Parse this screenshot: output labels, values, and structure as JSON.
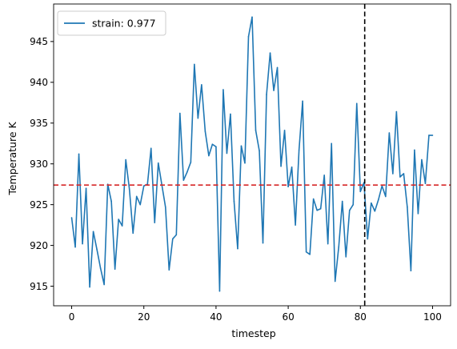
{
  "chart_data": {
    "type": "line",
    "title": "",
    "xlabel": "timestep",
    "ylabel": "Temperature K",
    "xlim": [
      -5,
      105
    ],
    "ylim": [
      912.6,
      949.6
    ],
    "xticks": [
      0,
      20,
      40,
      60,
      80,
      100
    ],
    "yticks": [
      915,
      920,
      925,
      930,
      935,
      940,
      945
    ],
    "xtick_labels": [
      "0",
      "20",
      "40",
      "60",
      "80",
      "100"
    ],
    "ytick_labels": [
      "915",
      "920",
      "925",
      "930",
      "935",
      "940",
      "945"
    ],
    "grid": false,
    "legend_position": "top-left",
    "series": [
      {
        "name": "strain: 0.977",
        "color": "#1f77b4",
        "x": [
          0,
          1,
          2,
          3,
          4,
          5,
          6,
          7,
          8,
          9,
          10,
          11,
          12,
          13,
          14,
          15,
          16,
          17,
          18,
          19,
          20,
          21,
          22,
          23,
          24,
          25,
          26,
          27,
          28,
          29,
          30,
          31,
          32,
          33,
          34,
          35,
          36,
          37,
          38,
          39,
          40,
          41,
          42,
          43,
          44,
          45,
          46,
          47,
          48,
          49,
          50,
          51,
          52,
          53,
          54,
          55,
          56,
          57,
          58,
          59,
          60,
          61,
          62,
          63,
          64,
          65,
          66,
          67,
          68,
          69,
          70,
          71,
          72,
          73,
          74,
          75,
          76,
          77,
          78,
          79,
          80,
          81,
          82,
          83,
          84,
          85,
          86,
          87,
          88,
          89,
          90,
          91,
          92,
          93,
          94,
          95,
          96,
          97,
          98,
          99,
          100
        ],
        "y": [
          923.4,
          919.8,
          931.2,
          920.2,
          927.0,
          914.9,
          921.7,
          919.5,
          917.2,
          915.2,
          927.5,
          925.4,
          917.1,
          923.2,
          922.4,
          930.5,
          926.9,
          921.5,
          926.0,
          925.0,
          927.3,
          927.5,
          931.9,
          922.8,
          930.1,
          927.4,
          924.7,
          917.0,
          920.8,
          921.3,
          936.2,
          928.0,
          929.0,
          930.2,
          942.2,
          935.6,
          939.7,
          934.0,
          931.0,
          932.4,
          932.1,
          914.4,
          939.1,
          931.3,
          936.1,
          925.4,
          919.6,
          932.2,
          930.1,
          945.6,
          948.0,
          934.1,
          931.6,
          920.3,
          938.5,
          943.6,
          939.0,
          941.8,
          929.7,
          934.1,
          927.2,
          929.6,
          922.5,
          931.7,
          937.7,
          919.2,
          918.9,
          925.7,
          924.3,
          924.5,
          928.6,
          920.2,
          932.5,
          915.6,
          919.8,
          925.4,
          918.6,
          924.3,
          925.0,
          937.4,
          926.6,
          927.7,
          920.8,
          925.2,
          924.2,
          925.6,
          927.3,
          926.0,
          933.8,
          928.8,
          936.4,
          928.4,
          928.8,
          924.7,
          916.9,
          931.7,
          923.9,
          930.5,
          927.6,
          933.5,
          933.5
        ]
      }
    ],
    "reference_lines": [
      {
        "orientation": "horizontal",
        "value": 927.4,
        "color": "#d62728",
        "style": "dashed"
      },
      {
        "orientation": "vertical",
        "value": 81.2,
        "color": "#000000",
        "style": "dashed"
      }
    ]
  }
}
